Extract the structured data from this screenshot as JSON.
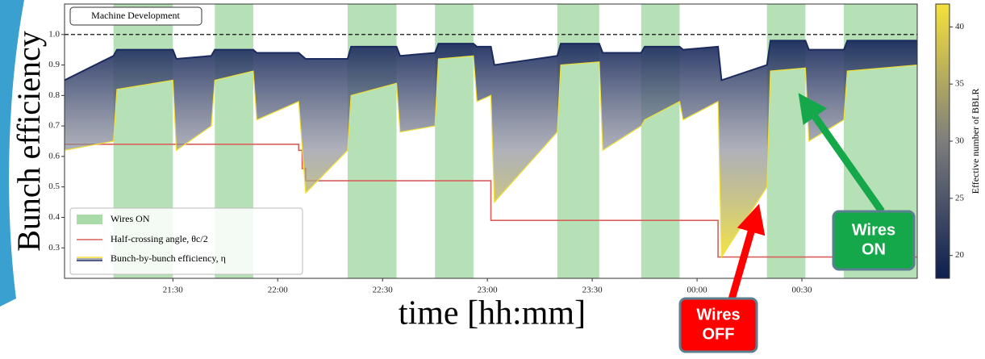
{
  "chart_data": {
    "type": "line",
    "annotation": "Machine Development",
    "x_label": "time [hh:mm]",
    "y_label": "Bunch efficiency",
    "xlim": [
      "20:59",
      "01:03"
    ],
    "xticks": [
      "21:30",
      "22:00",
      "22:30",
      "23:00",
      "23:30",
      "00:00",
      "00:30"
    ],
    "ylim": [
      0.2,
      1.1
    ],
    "yticks": [
      0.3,
      0.4,
      0.5,
      0.6,
      0.7,
      0.8,
      0.9,
      {
        "value": 1,
        "label": "1.0"
      }
    ],
    "reference_line": 1,
    "legend": "lower left",
    "bands": {
      "name": "Wires ON",
      "color": "#a9dba9",
      "ranges": [
        [
          "21:13",
          "21:30"
        ],
        [
          "21:42",
          "21:53"
        ],
        [
          "22:20",
          "22:34"
        ],
        [
          "22:45",
          "22:56"
        ],
        [
          "23:20",
          "23:32"
        ],
        [
          "23:44",
          "23:55"
        ],
        [
          "00:20",
          "00:31"
        ],
        [
          "00:42",
          "01:03"
        ]
      ]
    },
    "series": [
      {
        "name": "Half-crossing angle, θc/2",
        "color": "#d9605a",
        "step": true,
        "x": [
          "20:59",
          "22:06",
          "22:07",
          "22:08",
          "23:01",
          "00:06",
          "01:03"
        ],
        "values": [
          0.64,
          0.62,
          0.56,
          0.52,
          0.39,
          0.27,
          0.27
        ]
      },
      {
        "name": "Bunch-by-bunch efficiency, η",
        "color": "#1b2b5e",
        "low_color": "#f2e033",
        "x": [
          "20:59",
          "21:13",
          "21:14",
          "21:30",
          "21:31",
          "21:41",
          "21:42",
          "21:53",
          "21:54",
          "22:06",
          "22:08",
          "22:20",
          "22:21",
          "22:34",
          "22:35",
          "22:45",
          "22:46",
          "22:56",
          "22:57",
          "23:01",
          "23:02",
          "23:20",
          "23:21",
          "23:32",
          "23:33",
          "23:44",
          "23:45",
          "23:55",
          "23:56",
          "00:06",
          "00:07",
          "00:20",
          "00:21",
          "00:31",
          "00:32",
          "00:42",
          "00:43",
          "01:03"
        ],
        "values": [
          0.85,
          0.93,
          0.95,
          0.95,
          0.92,
          0.93,
          0.95,
          0.95,
          0.94,
          0.94,
          0.92,
          0.92,
          0.96,
          0.96,
          0.93,
          0.94,
          0.97,
          0.97,
          0.96,
          0.96,
          0.9,
          0.93,
          0.97,
          0.97,
          0.94,
          0.94,
          0.96,
          0.96,
          0.95,
          0.96,
          0.85,
          0.9,
          0.98,
          0.98,
          0.95,
          0.95,
          0.98,
          0.98
        ],
        "low": [
          0.62,
          0.65,
          0.82,
          0.85,
          0.62,
          0.7,
          0.85,
          0.88,
          0.72,
          0.78,
          0.48,
          0.62,
          0.8,
          0.84,
          0.68,
          0.7,
          0.92,
          0.93,
          0.78,
          0.8,
          0.45,
          0.68,
          0.9,
          0.91,
          0.62,
          0.7,
          0.72,
          0.78,
          0.72,
          0.78,
          0.27,
          0.5,
          0.88,
          0.89,
          0.65,
          0.72,
          0.88,
          0.9
        ]
      }
    ],
    "colorbar": {
      "label": "Effective number of BBLR",
      "lim": [
        18,
        42
      ],
      "ticks": [
        20,
        25,
        30,
        35,
        40
      ],
      "colors": [
        "#0d1f4f",
        "#7d7d7d",
        "#f5e13a"
      ]
    },
    "callouts": [
      {
        "text": [
          "Wires",
          "OFF"
        ],
        "color": "#ff0000"
      },
      {
        "text": [
          "Wires",
          "ON"
        ],
        "color": "#14a84a"
      }
    ]
  }
}
